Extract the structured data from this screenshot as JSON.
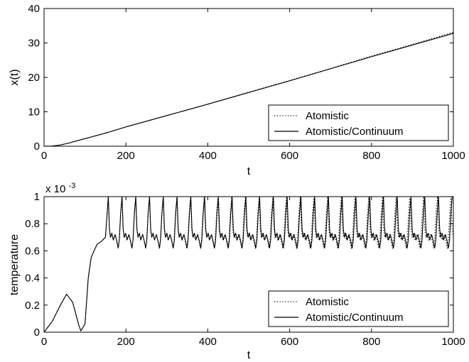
{
  "chart_data": [
    {
      "type": "line",
      "xlabel": "t",
      "ylabel": "x(t)",
      "xlim": [
        0,
        1000
      ],
      "ylim": [
        0,
        40
      ],
      "xticks": [
        0,
        200,
        400,
        600,
        800,
        1000
      ],
      "yticks": [
        0,
        10,
        20,
        30,
        40
      ],
      "xtick_labels": [
        "0",
        "200",
        "400",
        "600",
        "800",
        "1000"
      ],
      "ytick_labels": [
        "0",
        "10",
        "20",
        "30",
        "40"
      ],
      "grid": false,
      "legend_position": "bottom-right",
      "series": [
        {
          "name": "Atomistic",
          "style": "dotted",
          "x": [
            0,
            20,
            40,
            60,
            100,
            150,
            200,
            300,
            400,
            500,
            600,
            700,
            800,
            900,
            1000
          ],
          "y": [
            0,
            0.05,
            0.35,
            0.9,
            2.2,
            3.8,
            5.6,
            8.9,
            12.2,
            15.7,
            19.1,
            22.6,
            26.2,
            29.6,
            33.1
          ]
        },
        {
          "name": "Atomistic/Continuum",
          "style": "solid",
          "x": [
            0,
            20,
            40,
            60,
            100,
            150,
            200,
            300,
            400,
            500,
            600,
            700,
            800,
            900,
            1000
          ],
          "y": [
            0,
            0.05,
            0.35,
            0.9,
            2.2,
            3.8,
            5.6,
            8.9,
            12.2,
            15.6,
            19.0,
            22.5,
            26.0,
            29.4,
            32.8
          ]
        }
      ]
    },
    {
      "type": "line",
      "xlabel": "t",
      "ylabel": "temperature",
      "yscale_label": "x 10",
      "yscale_exponent": "-3",
      "xlim": [
        0,
        1000
      ],
      "ylim": [
        0,
        1
      ],
      "xticks": [
        0,
        200,
        400,
        600,
        800,
        1000
      ],
      "yticks": [
        0,
        0.2,
        0.4,
        0.6,
        0.8,
        1
      ],
      "xtick_labels": [
        "0",
        "200",
        "400",
        "600",
        "800",
        "1000"
      ],
      "ytick_labels": [
        "0",
        "0.2",
        "0.4",
        "0.6",
        "0.8",
        "1"
      ],
      "grid": false,
      "legend_position": "bottom-right",
      "oscillation_period": 33.5,
      "oscillation_start": 157,
      "peak_value": 1.0,
      "trough_value": 0.62,
      "series": [
        {
          "name": "Atomistic",
          "style": "dotted",
          "x": [
            0,
            20,
            40,
            55,
            70,
            85,
            90,
            100,
            108,
            115,
            122,
            130,
            140,
            150,
            157
          ],
          "y": [
            0,
            0.08,
            0.2,
            0.28,
            0.22,
            0.05,
            0.01,
            0.06,
            0.4,
            0.55,
            0.6,
            0.65,
            0.67,
            0.7,
            1.0
          ]
        },
        {
          "name": "Atomistic/Continuum",
          "style": "solid",
          "x": [
            0,
            20,
            40,
            55,
            70,
            85,
            90,
            100,
            108,
            115,
            122,
            130,
            140,
            150,
            157
          ],
          "y": [
            0,
            0.08,
            0.2,
            0.28,
            0.22,
            0.05,
            0.01,
            0.06,
            0.4,
            0.55,
            0.6,
            0.65,
            0.67,
            0.7,
            1.0
          ]
        }
      ]
    }
  ]
}
